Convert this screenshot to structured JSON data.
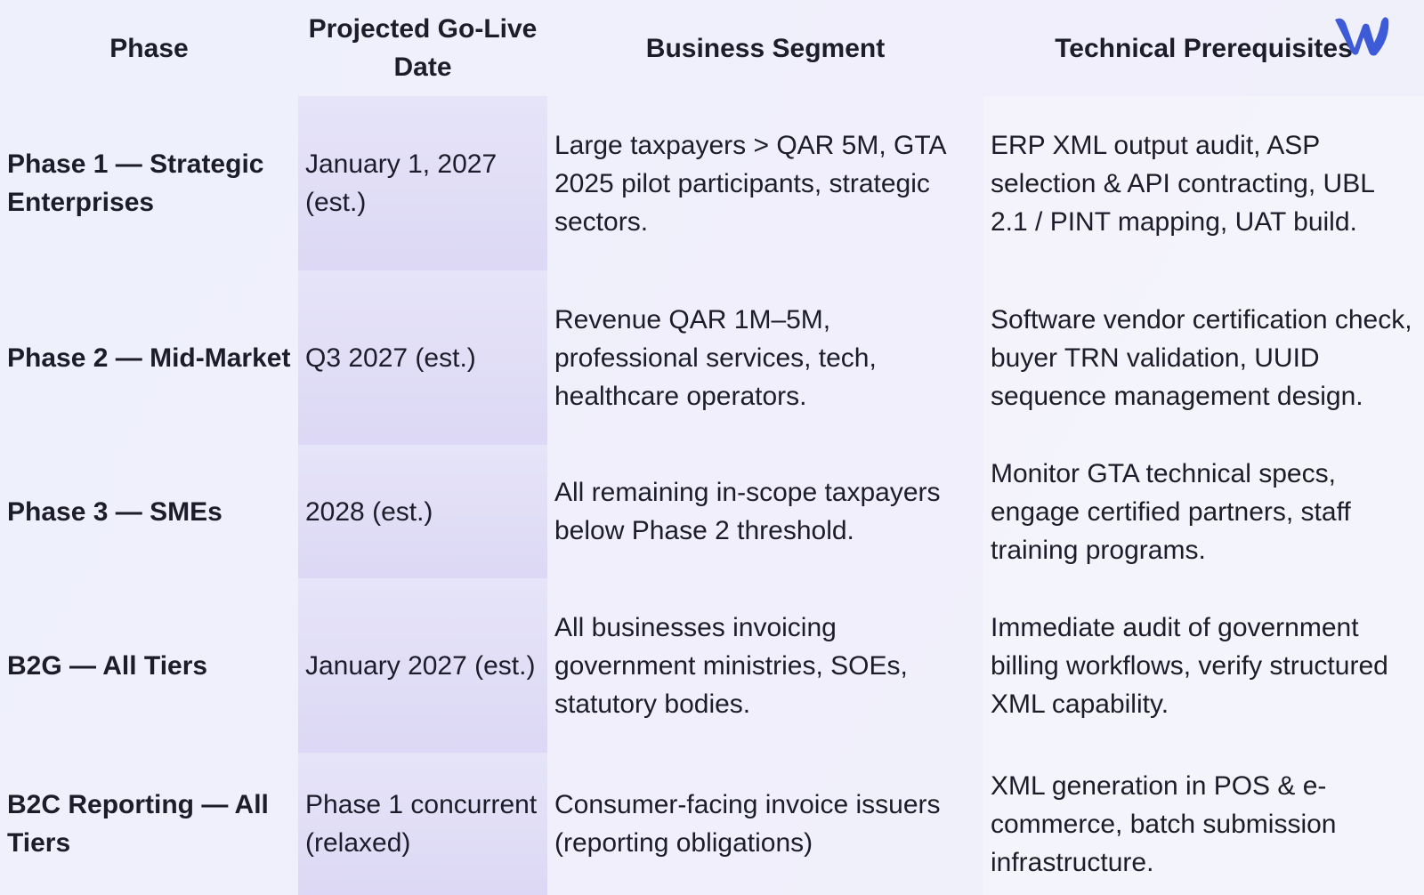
{
  "table": {
    "header": [
      "Phase",
      "Projected Go-Live Date",
      "Business Segment",
      "Technical Prerequisites"
    ],
    "rows": [
      [
        "Phase 1 — Strategic Enterprises",
        "January 1, 2027 (est.)",
        "Large taxpayers > QAR 5M, GTA 2025 pilot participants, strategic sectors.",
        "ERP XML output audit, ASP selection & API contracting, UBL 2.1 / PINT mapping, UAT build."
      ],
      [
        "Phase 2 — Mid-Market",
        "Q3 2027 (est.)",
        "Revenue QAR 1M–5M, professional services, tech, healthcare operators.",
        "Software vendor certification check, buyer TRN validation, UUID sequence management design."
      ],
      [
        "Phase 3 — SMEs",
        "2028 (est.)",
        "All remaining in-scope taxpayers below Phase 2 threshold.",
        "Monitor GTA technical specs, engage certified partners, staff training programs."
      ],
      [
        "B2G — All Tiers",
        "January 2027 (est.)",
        "All businesses invoicing government ministries, SOEs, statutory bodies.",
        "Immediate audit of government billing workflows, verify structured XML capability."
      ],
      [
        "B2C Reporting — All Tiers",
        "Phase 1 concurrent (relaxed)",
        "Consumer-facing invoice issuers (reporting obligations)",
        "XML generation in POS & e-commerce, batch submission infrastructure."
      ]
    ]
  }
}
